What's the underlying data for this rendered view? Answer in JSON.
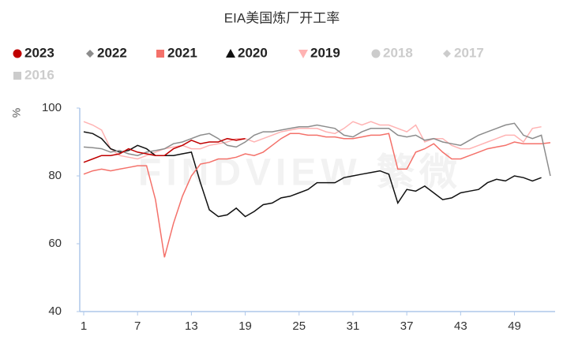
{
  "chart_data": {
    "type": "line",
    "title": "EIA美国炼厂开工率",
    "y_label": "%",
    "watermark": "FINDVIEW 繁微",
    "x": [
      1,
      2,
      3,
      4,
      5,
      6,
      7,
      8,
      9,
      10,
      11,
      12,
      13,
      14,
      15,
      16,
      17,
      18,
      19,
      20,
      21,
      22,
      23,
      24,
      25,
      26,
      27,
      28,
      29,
      30,
      31,
      32,
      33,
      34,
      35,
      36,
      37,
      38,
      39,
      40,
      41,
      42,
      43,
      44,
      45,
      46,
      47,
      48,
      49,
      50,
      51,
      52,
      53
    ],
    "xlim": [
      1,
      53
    ],
    "xticks": [
      1,
      7,
      13,
      19,
      25,
      31,
      37,
      43,
      49
    ],
    "ylim": [
      40,
      100
    ],
    "yticks": [
      40,
      60,
      80,
      100
    ],
    "series": [
      {
        "name": "2023",
        "color": "#c00000",
        "marker": "circle",
        "values": [
          84,
          85,
          86,
          86,
          86.5,
          88,
          87,
          86.5,
          86,
          86,
          88,
          89,
          90.5,
          89.5,
          90,
          90,
          91,
          90.5,
          91,
          null,
          null,
          null,
          null,
          null,
          null,
          null,
          null,
          null,
          null,
          null,
          null,
          null,
          null,
          null,
          null,
          null,
          null,
          null,
          null,
          null,
          null,
          null,
          null,
          null,
          null,
          null,
          null,
          null,
          null,
          null,
          null,
          null,
          null
        ]
      },
      {
        "name": "2022",
        "color": "#8c8c8c",
        "marker": "diamond",
        "values": [
          88.5,
          88.3,
          88,
          87,
          87.5,
          86.5,
          86,
          87,
          87.5,
          88,
          89.5,
          90,
          91,
          92,
          92.5,
          91,
          89,
          88.5,
          90,
          92,
          93,
          93,
          93.5,
          94,
          94.5,
          94.5,
          95,
          94.5,
          94,
          92,
          91.5,
          93,
          94,
          94,
          94,
          92,
          91.5,
          92,
          90.5,
          91,
          90,
          89.5,
          89,
          90.5,
          92,
          93,
          94,
          95,
          95.5,
          92,
          91,
          92,
          80
        ]
      },
      {
        "name": "2021",
        "color": "#f4716a",
        "marker": "square",
        "values": [
          80.5,
          81.5,
          82,
          81.5,
          82,
          82.5,
          83,
          83,
          73,
          56,
          66,
          74,
          80,
          83.5,
          84,
          85,
          85,
          85.5,
          86.5,
          86,
          87,
          89,
          91,
          92.5,
          92.5,
          92,
          92,
          91.5,
          91.5,
          91,
          91,
          91.5,
          92,
          92,
          92.5,
          82,
          82,
          87,
          88,
          89.5,
          87,
          85,
          85,
          86,
          87,
          88,
          88.5,
          89,
          90,
          89.5,
          89.5,
          89.5,
          89.8
        ]
      },
      {
        "name": "2020",
        "color": "#111111",
        "marker": "triangle",
        "values": [
          93,
          92.5,
          91,
          88,
          87,
          87.5,
          89,
          88,
          86,
          86,
          86,
          86.5,
          87,
          78,
          70,
          68,
          68.5,
          70.5,
          68,
          69.5,
          71.5,
          72,
          73.5,
          74,
          75,
          76,
          78,
          78,
          78,
          79.5,
          80,
          80.5,
          81,
          81.5,
          80.5,
          72,
          76,
          75.5,
          77,
          75,
          73,
          73.5,
          75,
          75.5,
          76,
          78,
          79,
          78.5,
          80,
          79.5,
          78.5,
          79.5,
          null
        ]
      },
      {
        "name": "2019",
        "color": "#ffb3b3",
        "marker": "triangle-down",
        "values": [
          96,
          95,
          93.5,
          88,
          86,
          85.5,
          85,
          86,
          87,
          88,
          88.5,
          89,
          88,
          88,
          89,
          89.5,
          90,
          91,
          91,
          90,
          91,
          92,
          93,
          93.5,
          94,
          94,
          94,
          93,
          92.5,
          94,
          96,
          95,
          96,
          95,
          95,
          94,
          93,
          95,
          90,
          91,
          91,
          89,
          88,
          88,
          89,
          90,
          91,
          92,
          92,
          90,
          94,
          94.5,
          null
        ]
      }
    ],
    "hidden_series": [
      {
        "name": "2018",
        "color": "#cccccc",
        "marker": "circle"
      },
      {
        "name": "2017",
        "color": "#cccccc",
        "marker": "diamond"
      },
      {
        "name": "2016",
        "color": "#cccccc",
        "marker": "square"
      }
    ]
  }
}
